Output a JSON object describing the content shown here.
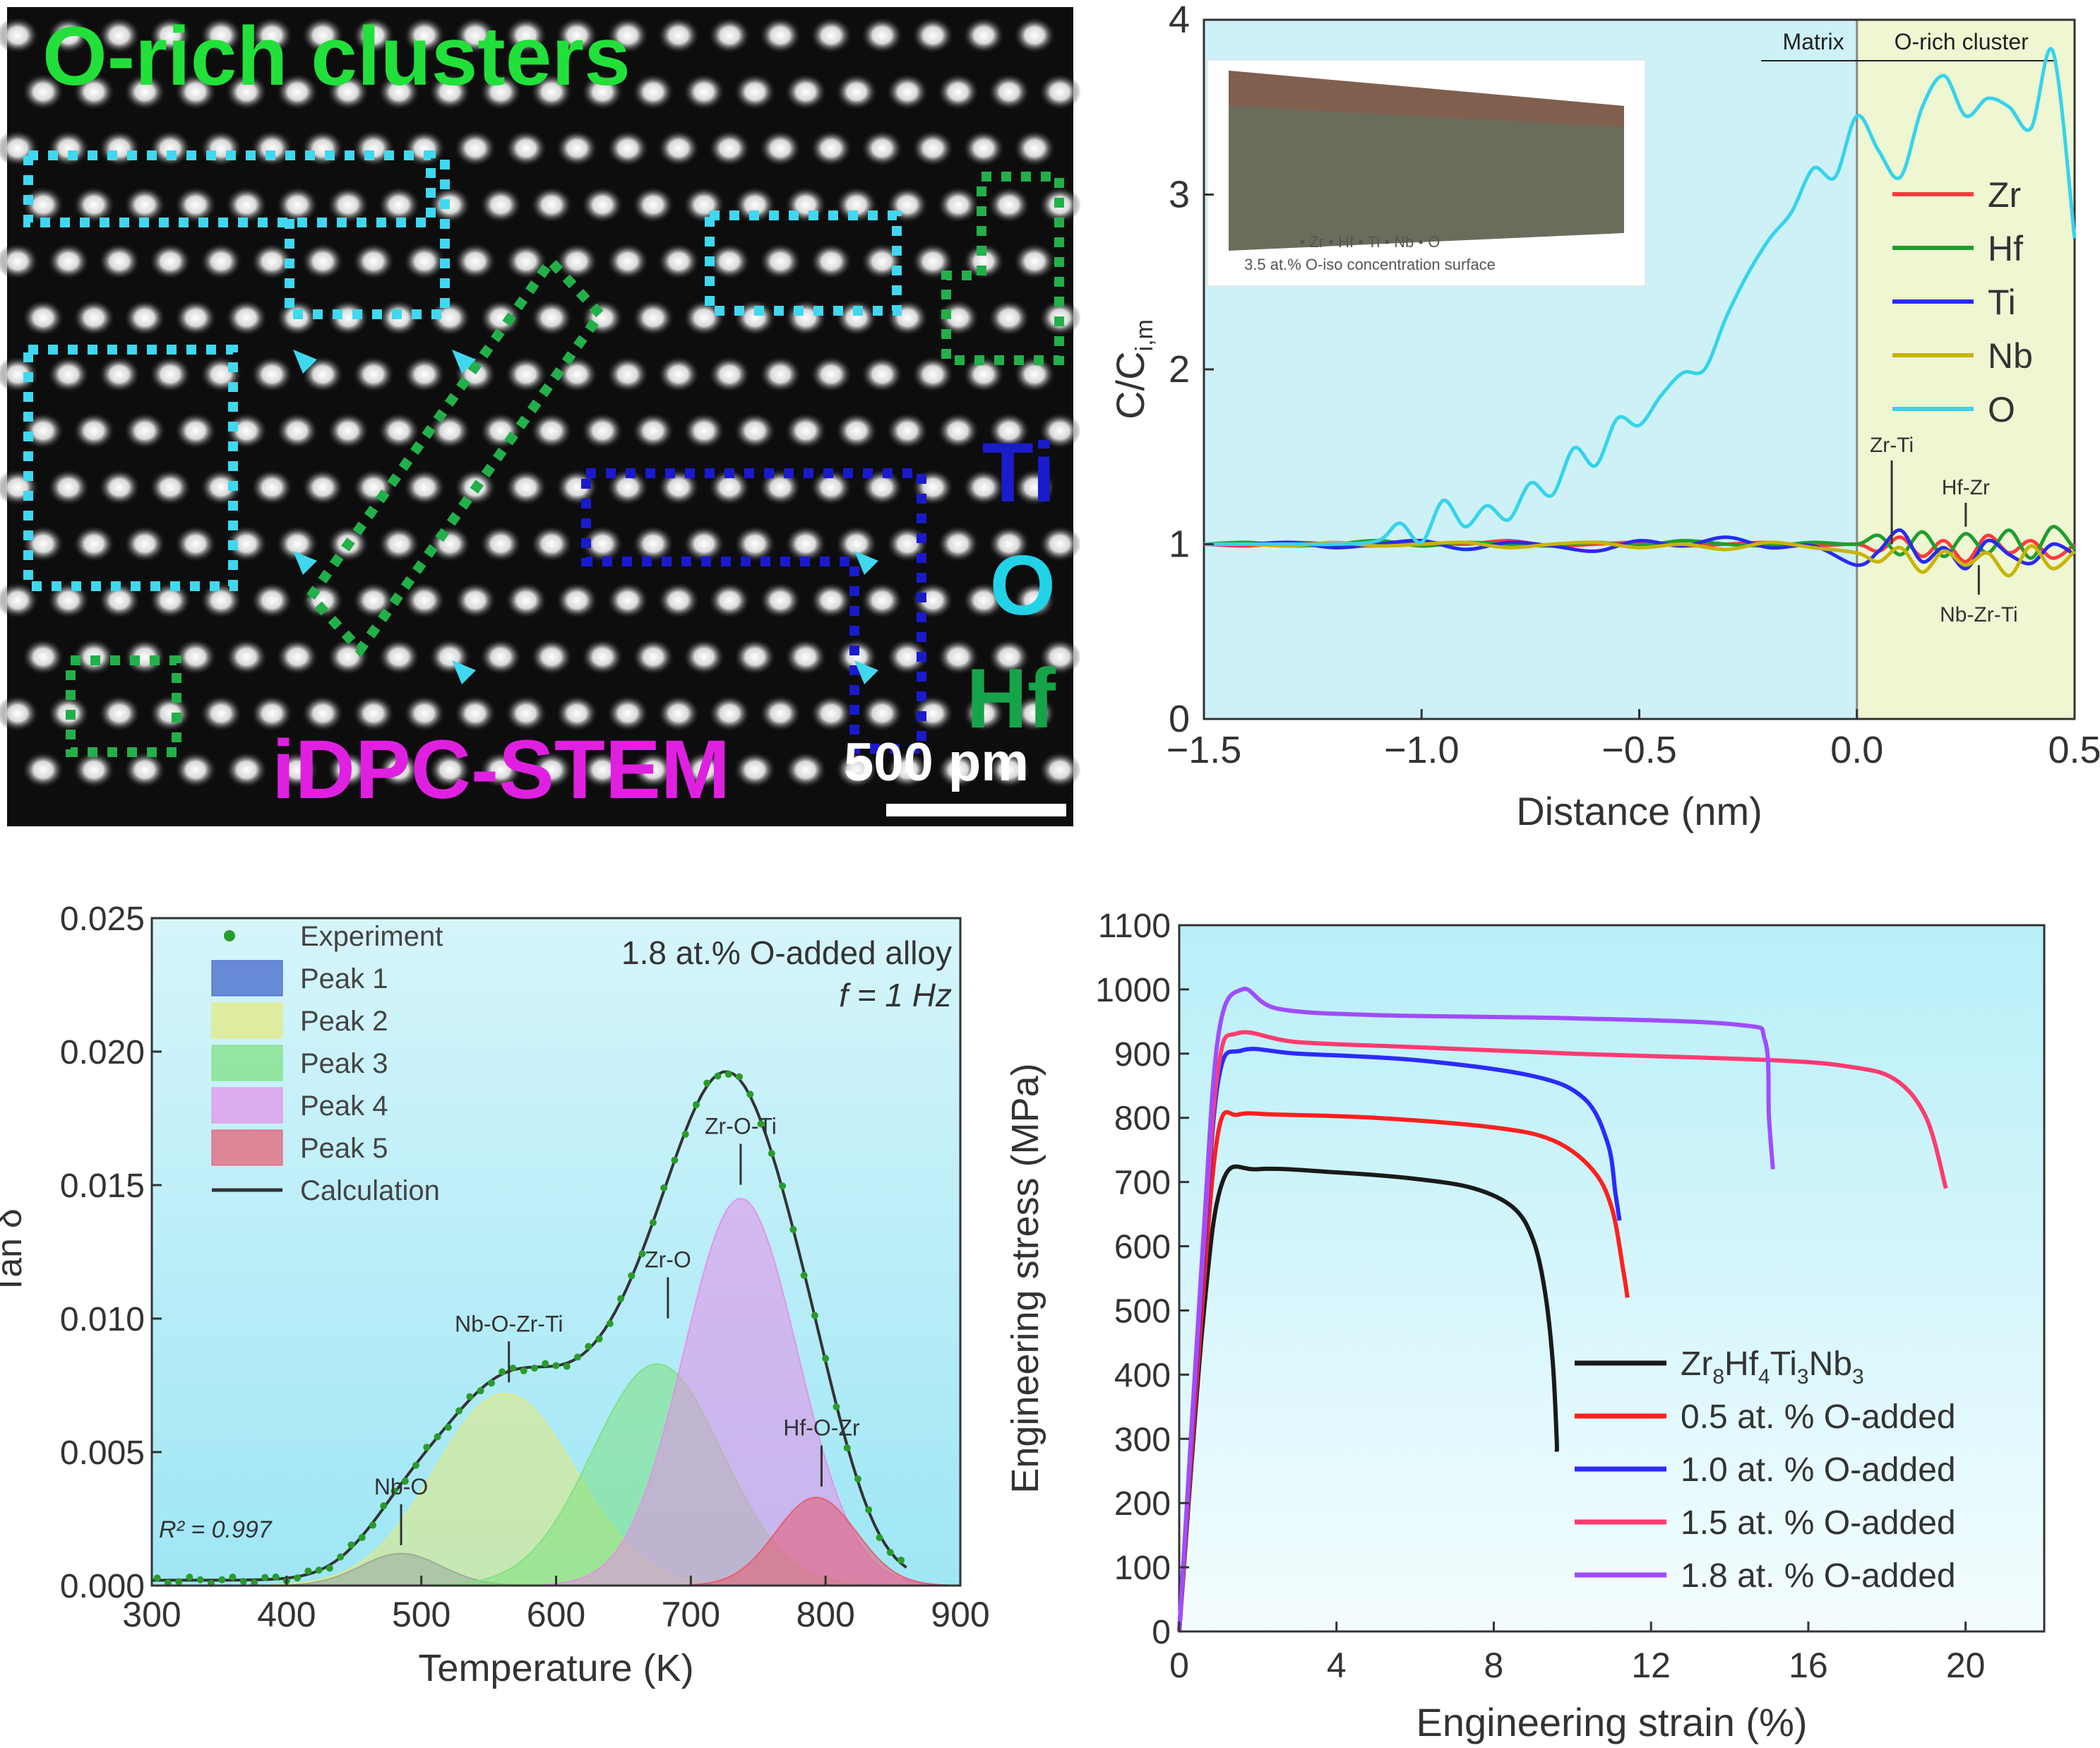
{
  "stem_image": {
    "title": "O-rich clusters",
    "technique": "iDPC-STEM",
    "scale_bar": "500 pm",
    "element_labels": [
      {
        "text": "Ti",
        "color": "#1b1bcc"
      },
      {
        "text": "O",
        "color": "#22d3e8"
      },
      {
        "text": "Hf",
        "color": "#16a34a"
      }
    ],
    "colors": {
      "title": "#22e03a",
      "technique": "#e020e0",
      "o_box": "#3fd8f0",
      "hf_box": "#22b04a",
      "ti_box": "#1a1acc"
    }
  },
  "chart_data": [
    {
      "id": "profile",
      "type": "line",
      "xlabel": "Distance (nm)",
      "ylabel": "C/C",
      "ylabel_sub": "i,m",
      "xlim": [
        -1.5,
        0.5
      ],
      "ylim": [
        0,
        4
      ],
      "xticks": [
        "−1.5",
        "−1.0",
        "−0.5",
        "0.0",
        "0.5"
      ],
      "yticks": [
        "0",
        "1",
        "2",
        "3",
        "4"
      ],
      "regions": [
        {
          "label": "Matrix",
          "x": [
            -1.5,
            0.0
          ],
          "color": "#cdf1f7"
        },
        {
          "label": "O-rich cluster",
          "x": [
            0.0,
            0.5
          ],
          "color": "#eef6d2"
        }
      ],
      "inset_labels": [
        "• Zr • Hf • Ti • Nb • O",
        "3.5 at.% O-iso concentration surface"
      ],
      "legend_position": "right",
      "series": [
        {
          "name": "Zr",
          "color": "#ff3b3b",
          "x": [
            -1.5,
            -1.4,
            -1.3,
            -1.2,
            -1.1,
            -1.0,
            -0.9,
            -0.8,
            -0.7,
            -0.6,
            -0.5,
            -0.4,
            -0.3,
            -0.2,
            -0.1,
            0.0,
            0.05,
            0.1,
            0.15,
            0.2,
            0.25,
            0.3,
            0.35,
            0.4,
            0.45,
            0.5
          ],
          "y": [
            1.0,
            0.99,
            1.01,
            1.0,
            0.99,
            1.01,
            1.0,
            1.02,
            0.99,
            1.0,
            1.01,
            0.99,
            1.0,
            1.01,
            0.99,
            1.0,
            0.96,
            1.04,
            0.93,
            1.02,
            0.9,
            1.05,
            0.95,
            1.02,
            0.92,
            1.0
          ]
        },
        {
          "name": "Hf",
          "color": "#1f9e2e",
          "x": [
            -1.5,
            -1.4,
            -1.3,
            -1.2,
            -1.1,
            -1.0,
            -0.9,
            -0.8,
            -0.7,
            -0.6,
            -0.5,
            -0.4,
            -0.3,
            -0.2,
            -0.1,
            0.0,
            0.05,
            0.1,
            0.15,
            0.2,
            0.25,
            0.3,
            0.35,
            0.4,
            0.45,
            0.5
          ],
          "y": [
            1.0,
            1.01,
            0.99,
            1.0,
            1.02,
            0.99,
            1.01,
            1.0,
            0.99,
            1.01,
            0.99,
            1.02,
            1.0,
            0.99,
            1.01,
            1.0,
            1.05,
            0.94,
            1.07,
            0.93,
            1.06,
            0.95,
            1.08,
            0.92,
            1.1,
            0.97
          ]
        },
        {
          "name": "Ti",
          "color": "#2a2af0",
          "x": [
            -1.5,
            -1.4,
            -1.3,
            -1.2,
            -1.1,
            -1.0,
            -0.9,
            -0.8,
            -0.7,
            -0.6,
            -0.5,
            -0.4,
            -0.3,
            -0.2,
            -0.1,
            0.0,
            0.05,
            0.1,
            0.15,
            0.2,
            0.25,
            0.3,
            0.35,
            0.4,
            0.45,
            0.5
          ],
          "y": [
            1.0,
            1.0,
            1.01,
            0.98,
            1.0,
            1.02,
            0.97,
            1.01,
            0.99,
            0.96,
            1.02,
            0.99,
            1.04,
            0.98,
            0.99,
            0.88,
            0.96,
            1.08,
            0.9,
            0.98,
            0.86,
            1.02,
            0.94,
            0.89,
            1.0,
            0.94
          ]
        },
        {
          "name": "Nb",
          "color": "#c8b400",
          "x": [
            -1.5,
            -1.4,
            -1.3,
            -1.2,
            -1.1,
            -1.0,
            -0.9,
            -0.8,
            -0.7,
            -0.6,
            -0.5,
            -0.4,
            -0.3,
            -0.2,
            -0.1,
            0.0,
            0.05,
            0.1,
            0.15,
            0.2,
            0.25,
            0.3,
            0.35,
            0.4,
            0.45,
            0.5
          ],
          "y": [
            1.0,
            1.0,
            0.99,
            1.01,
            0.99,
            1.0,
            1.01,
            0.98,
            1.0,
            1.01,
            0.98,
            1.0,
            0.97,
            1.01,
            0.98,
            0.95,
            0.9,
            0.98,
            0.84,
            0.96,
            0.88,
            0.95,
            0.82,
            0.99,
            0.86,
            0.96
          ]
        },
        {
          "name": "O",
          "color": "#36d3ec",
          "x": [
            -1.5,
            -1.4,
            -1.3,
            -1.2,
            -1.1,
            -1.05,
            -1.0,
            -0.95,
            -0.9,
            -0.85,
            -0.8,
            -0.75,
            -0.7,
            -0.65,
            -0.6,
            -0.55,
            -0.5,
            -0.45,
            -0.4,
            -0.35,
            -0.3,
            -0.25,
            -0.2,
            -0.15,
            -0.1,
            -0.05,
            0.0,
            0.05,
            0.1,
            0.15,
            0.2,
            0.25,
            0.3,
            0.35,
            0.4,
            0.45,
            0.5
          ],
          "y": [
            1.0,
            1.0,
            1.0,
            1.0,
            1.02,
            1.12,
            1.01,
            1.25,
            1.1,
            1.22,
            1.14,
            1.35,
            1.28,
            1.55,
            1.45,
            1.72,
            1.68,
            1.85,
            1.98,
            2.0,
            2.3,
            2.55,
            2.75,
            2.9,
            3.15,
            3.1,
            3.45,
            3.25,
            3.1,
            3.5,
            3.68,
            3.45,
            3.55,
            3.5,
            3.38,
            3.82,
            2.75
          ]
        }
      ],
      "annotations": [
        {
          "text": "Zr-Ti",
          "x": 0.08,
          "y": 1.0
        },
        {
          "text": "Hf-Zr",
          "x": 0.25,
          "y": 1.1
        },
        {
          "text": "Nb-Zr-Ti",
          "x": 0.28,
          "y": 0.88
        }
      ]
    },
    {
      "id": "tan",
      "type": "area",
      "xlabel": "Temperature (K)",
      "ylabel": "Tan δ",
      "xlim": [
        300,
        900
      ],
      "ylim": [
        0,
        0.025
      ],
      "xticks": [
        "300",
        "400",
        "500",
        "600",
        "700",
        "800",
        "900"
      ],
      "yticks": [
        "0.000",
        "0.005",
        "0.010",
        "0.015",
        "0.020",
        "0.025"
      ],
      "title_lines": [
        "1.8 at.% O-added alloy",
        "f = 1 Hz"
      ],
      "r_squared": "R² = 0.997",
      "legend_position": "top-left",
      "legend": [
        "Experiment",
        "Peak 1",
        "Peak 2",
        "Peak 3",
        "Peak 4",
        "Peak 5",
        "Calculation"
      ],
      "peaks": [
        {
          "name": "Peak 1",
          "center": 485,
          "height": 0.0012,
          "width": 30,
          "color": "#3b5cc6",
          "label": "Nb-O"
        },
        {
          "name": "Peak 2",
          "center": 562,
          "height": 0.0072,
          "width": 52,
          "color": "#e6ea7a",
          "label": "Nb-O-Zr-Ti"
        },
        {
          "name": "Peak 3",
          "center": 675,
          "height": 0.0083,
          "width": 48,
          "color": "#7ee07e",
          "label": "Zr-O"
        },
        {
          "name": "Peak 4",
          "center": 737,
          "height": 0.0145,
          "width": 42,
          "color": "#e58ee8",
          "label": "Zr-O-Ti"
        },
        {
          "name": "Peak 5",
          "center": 793,
          "height": 0.0033,
          "width": 30,
          "color": "#e8586e",
          "label": "Hf-O-Zr"
        }
      ],
      "annotations": [
        {
          "text": "Nb-O",
          "x": 485,
          "y": 0.0013
        },
        {
          "text": "Nb-O-Zr-Ti",
          "x": 565,
          "y": 0.0074
        },
        {
          "text": "Zr-O",
          "x": 683,
          "y": 0.0098
        },
        {
          "text": "Zr-O-Ti",
          "x": 737,
          "y": 0.0148
        },
        {
          "text": "Hf-O-Zr",
          "x": 797,
          "y": 0.0035
        }
      ]
    },
    {
      "id": "stress",
      "type": "line",
      "xlabel": "Engineering strain (%)",
      "ylabel": "Engineering stress (MPa)",
      "xlim": [
        0,
        22
      ],
      "ylim": [
        0,
        1100
      ],
      "xticks": [
        "0",
        "4",
        "8",
        "12",
        "16",
        "20"
      ],
      "yticks": [
        "0",
        "100",
        "200",
        "300",
        "400",
        "500",
        "600",
        "700",
        "800",
        "900",
        "1000",
        "1100"
      ],
      "legend_position": "bottom-right",
      "series": [
        {
          "name": "Zr8Hf4Ti3Nb3",
          "name_parts": [
            "Zr",
            "8",
            "Hf",
            "4",
            "Ti",
            "3",
            "Nb",
            "3"
          ],
          "color": "#1a1a1a",
          "x": [
            0,
            0.6,
            1.1,
            2,
            4,
            6,
            7.5,
            8.5,
            9.0,
            9.3,
            9.5,
            9.6,
            9.6
          ],
          "y": [
            0,
            480,
            700,
            720,
            715,
            705,
            690,
            660,
            610,
            530,
            420,
            300,
            280
          ]
        },
        {
          "name": "0.5 at. % O-added",
          "color": "#ff2020",
          "x": [
            0,
            0.6,
            1.0,
            1.5,
            2.5,
            5,
            8,
            9.5,
            10.5,
            11.0,
            11.3,
            11.4
          ],
          "y": [
            0,
            520,
            780,
            805,
            805,
            800,
            785,
            765,
            720,
            660,
            560,
            520
          ]
        },
        {
          "name": "1.0 at. % O-added",
          "color": "#2b2bff",
          "x": [
            0,
            0.6,
            1.0,
            1.6,
            3,
            6,
            9,
            10.3,
            10.9,
            11.1,
            11.2
          ],
          "y": [
            0,
            560,
            860,
            905,
            900,
            890,
            865,
            830,
            760,
            680,
            640
          ]
        },
        {
          "name": "1.5 at. % O-added",
          "color": "#ff3c70",
          "x": [
            0,
            0.6,
            1.0,
            1.5,
            3,
            6,
            10,
            15,
            17,
            18.2,
            19.0,
            19.5
          ],
          "y": [
            0,
            580,
            880,
            932,
            918,
            910,
            900,
            890,
            880,
            860,
            800,
            690
          ]
        },
        {
          "name": "1.8 at. % O-added",
          "color": "#a04cff",
          "x": [
            0,
            0.6,
            1.0,
            1.6,
            2.5,
            5,
            10,
            14.2,
            14.9,
            15.0,
            15.1
          ],
          "y": [
            0,
            600,
            930,
            1000,
            970,
            960,
            955,
            945,
            920,
            800,
            720
          ]
        }
      ]
    }
  ]
}
